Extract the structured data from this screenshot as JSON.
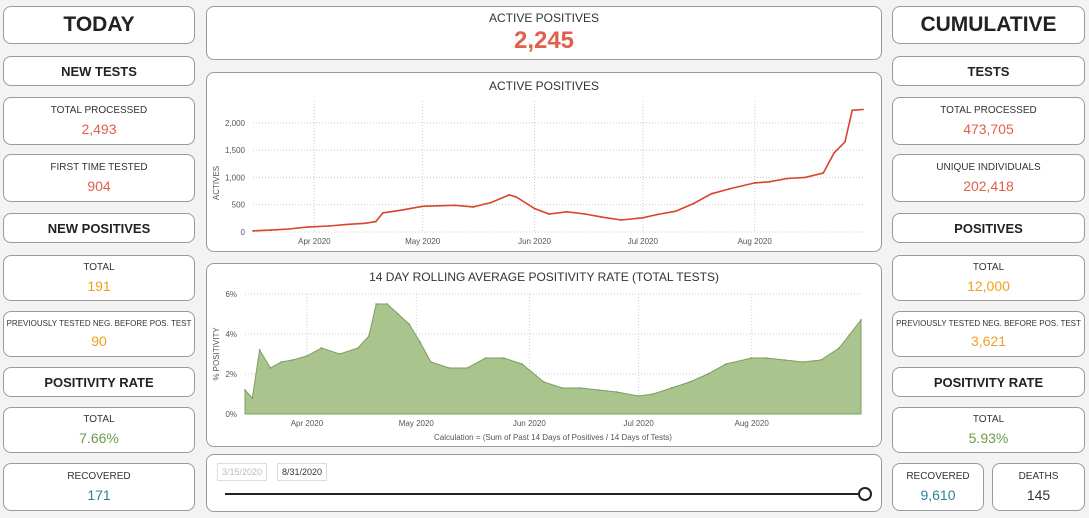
{
  "today": {
    "title": "TODAY",
    "new_tests_header": "NEW TESTS",
    "total_processed_label": "TOTAL PROCESSED",
    "total_processed_value": "2,493",
    "first_time_tested_label": "FIRST TIME TESTED",
    "first_time_tested_value": "904",
    "new_positives_header": "NEW POSITIVES",
    "total_label": "TOTAL",
    "total_value": "191",
    "prev_neg_label": "PREVIOUSLY TESTED NEG. BEFORE POS. TEST",
    "prev_neg_value": "90",
    "positivity_header": "POSITIVITY RATE",
    "positivity_total_label": "TOTAL",
    "positivity_total_value": "7.66%",
    "recovered_label": "RECOVERED",
    "recovered_value": "171"
  },
  "active": {
    "label": "ACTIVE POSITIVES",
    "value": "2,245"
  },
  "cumulative": {
    "title": "CUMULATIVE",
    "tests_header": "TESTS",
    "total_processed_label": "TOTAL PROCESSED",
    "total_processed_value": "473,705",
    "unique_label": "UNIQUE INDIVIDUALS",
    "unique_value": "202,418",
    "positives_header": "POSITIVES",
    "total_label": "TOTAL",
    "total_value": "12,000",
    "prev_neg_label": "PREVIOUSLY TESTED NEG. BEFORE POS. TEST",
    "prev_neg_value": "3,621",
    "positivity_header": "POSITIVITY RATE",
    "positivity_total_label": "TOTAL",
    "positivity_total_value": "5.93%",
    "recovered_label": "RECOVERED",
    "recovered_value": "9,610",
    "deaths_label": "DEATHS",
    "deaths_value": "145"
  },
  "slider": {
    "start_date": "3/15/2020",
    "end_date": "8/31/2020",
    "position": 1.0
  },
  "colors": {
    "red": "#e0604b",
    "orange": "#f0a020",
    "green": "#6e9a4c",
    "teal": "#2e7f9e",
    "line": "#d9442c",
    "area": "#a9c48c"
  },
  "chart_data": [
    {
      "type": "line",
      "title": "ACTIVE POSITIVES",
      "ylabel": "ACTIVES",
      "xlabel": "",
      "x_ticks": [
        "Apr 2020",
        "May 2020",
        "Jun 2020",
        "Jul 2020",
        "Aug 2020"
      ],
      "y_ticks": [
        "0",
        "500",
        "1,000",
        "1,500",
        "2,000"
      ],
      "ylim": [
        0,
        2400
      ],
      "x": [
        "2020-03-15",
        "2020-03-20",
        "2020-03-25",
        "2020-03-30",
        "2020-04-05",
        "2020-04-10",
        "2020-04-15",
        "2020-04-18",
        "2020-04-20",
        "2020-04-25",
        "2020-05-01",
        "2020-05-05",
        "2020-05-10",
        "2020-05-15",
        "2020-05-20",
        "2020-05-25",
        "2020-05-27",
        "2020-06-01",
        "2020-06-05",
        "2020-06-10",
        "2020-06-15",
        "2020-06-20",
        "2020-06-25",
        "2020-07-01",
        "2020-07-05",
        "2020-07-10",
        "2020-07-15",
        "2020-07-20",
        "2020-07-25",
        "2020-08-01",
        "2020-08-05",
        "2020-08-10",
        "2020-08-15",
        "2020-08-20",
        "2020-08-23",
        "2020-08-26",
        "2020-08-28",
        "2020-08-31"
      ],
      "series": [
        {
          "values": [
            20,
            35,
            55,
            90,
            110,
            140,
            160,
            190,
            350,
            400,
            470,
            480,
            490,
            460,
            540,
            680,
            640,
            430,
            330,
            370,
            330,
            270,
            220,
            260,
            320,
            380,
            520,
            700,
            790,
            900,
            920,
            980,
            1000,
            1080,
            1450,
            1650,
            2230,
            2245
          ]
        }
      ]
    },
    {
      "type": "area",
      "title": "14 DAY ROLLING AVERAGE POSITIVITY RATE (TOTAL TESTS)",
      "ylabel": "% POSITIVITY",
      "xlabel": "Calculation = (Sum of Past 14 Days of Positives / 14 Days of Tests)",
      "x_ticks": [
        "Apr 2020",
        "May 2020",
        "Jun 2020",
        "Jul 2020",
        "Aug 2020"
      ],
      "y_ticks": [
        "0%",
        "2%",
        "4%",
        "6%"
      ],
      "ylim": [
        0,
        6
      ],
      "x": [
        "2020-03-15",
        "2020-03-17",
        "2020-03-19",
        "2020-03-22",
        "2020-03-25",
        "2020-03-28",
        "2020-04-01",
        "2020-04-05",
        "2020-04-10",
        "2020-04-15",
        "2020-04-18",
        "2020-04-20",
        "2020-04-23",
        "2020-04-26",
        "2020-04-29",
        "2020-05-02",
        "2020-05-05",
        "2020-05-10",
        "2020-05-15",
        "2020-05-20",
        "2020-05-25",
        "2020-05-30",
        "2020-06-05",
        "2020-06-10",
        "2020-06-15",
        "2020-06-20",
        "2020-06-25",
        "2020-07-01",
        "2020-07-05",
        "2020-07-10",
        "2020-07-15",
        "2020-07-20",
        "2020-07-25",
        "2020-08-01",
        "2020-08-05",
        "2020-08-10",
        "2020-08-15",
        "2020-08-20",
        "2020-08-25",
        "2020-08-31"
      ],
      "series": [
        {
          "values": [
            1.2,
            0.8,
            3.2,
            2.3,
            2.6,
            2.7,
            2.9,
            3.3,
            3.0,
            3.3,
            3.9,
            5.5,
            5.5,
            5.0,
            4.5,
            3.6,
            2.6,
            2.3,
            2.3,
            2.8,
            2.8,
            2.5,
            1.6,
            1.3,
            1.3,
            1.2,
            1.1,
            0.9,
            1.0,
            1.3,
            1.6,
            2.0,
            2.5,
            2.8,
            2.8,
            2.7,
            2.6,
            2.7,
            3.3,
            4.7
          ]
        }
      ]
    }
  ]
}
